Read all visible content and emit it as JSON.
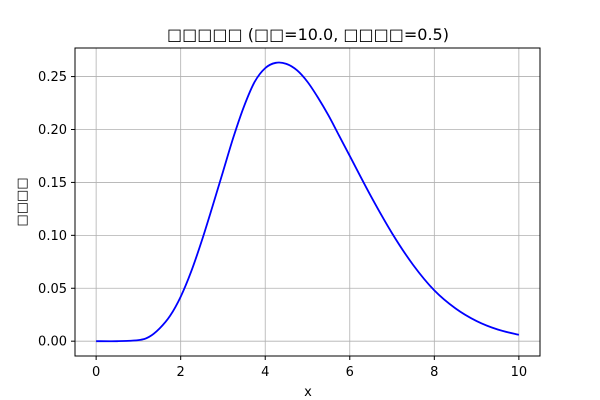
{
  "chart_data": {
    "type": "line",
    "title": "□□□□□ (□□=10.0, □□□□=0.5)",
    "xlabel": "x",
    "ylabel": "□□□□",
    "xlim": [
      -0.5,
      10.5
    ],
    "ylim": [
      -0.014,
      0.277
    ],
    "xticks": [
      0,
      2,
      4,
      6,
      8,
      10
    ],
    "yticks": [
      0.0,
      0.05,
      0.1,
      0.15,
      0.2,
      0.25
    ],
    "xtick_labels": [
      "0",
      "2",
      "4",
      "6",
      "8",
      "10"
    ],
    "ytick_labels": [
      "0.00",
      "0.05",
      "0.10",
      "0.15",
      "0.20",
      "0.25"
    ],
    "grid": true,
    "series": [
      {
        "color": "#0000ff",
        "x": [
          0,
          0.5,
          1.0,
          1.25,
          1.5,
          1.75,
          2.0,
          2.25,
          2.5,
          2.75,
          3.0,
          3.25,
          3.5,
          3.75,
          4.0,
          4.25,
          4.5,
          4.75,
          5.0,
          5.25,
          5.5,
          5.75,
          6.0,
          6.5,
          7.0,
          7.5,
          8.0,
          8.5,
          9.0,
          9.5,
          10.0
        ],
        "y": [
          0.0,
          0.0,
          0.001,
          0.004,
          0.012,
          0.024,
          0.042,
          0.066,
          0.095,
          0.127,
          0.16,
          0.193,
          0.222,
          0.245,
          0.258,
          0.263,
          0.262,
          0.256,
          0.245,
          0.23,
          0.213,
          0.194,
          0.175,
          0.137,
          0.102,
          0.072,
          0.048,
          0.031,
          0.019,
          0.011,
          0.006
        ]
      }
    ]
  }
}
